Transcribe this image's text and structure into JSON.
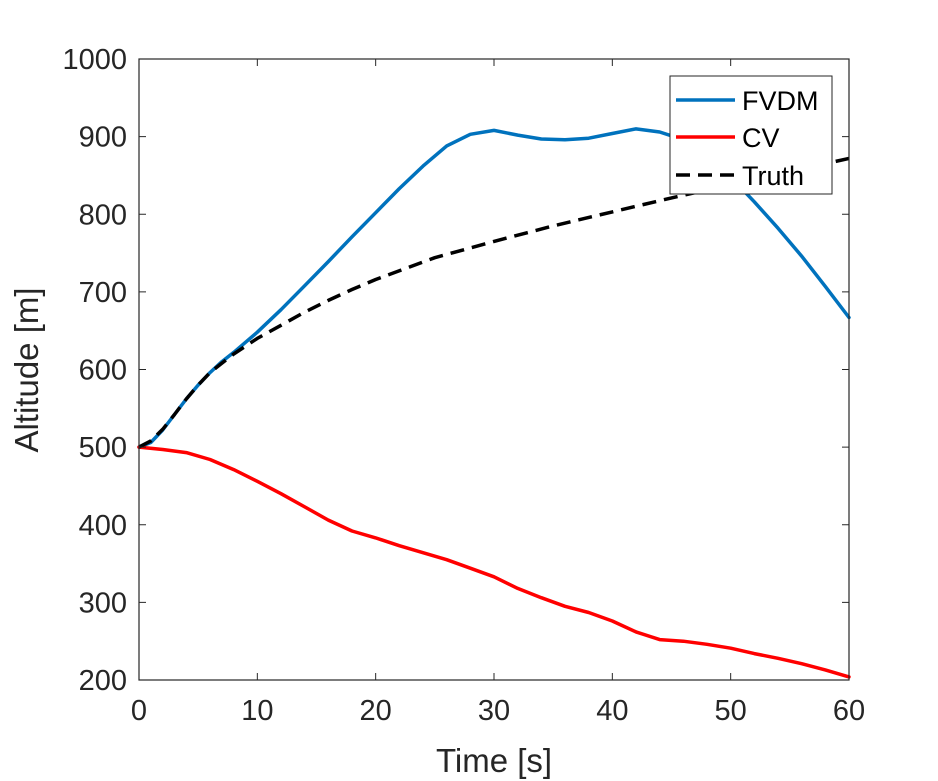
{
  "chart_data": {
    "type": "line",
    "xlabel": "Time [s]",
    "ylabel": "Altitude [m]",
    "xlim": [
      0,
      60
    ],
    "ylim": [
      200,
      1000
    ],
    "xticks": [
      "0",
      "10",
      "20",
      "30",
      "40",
      "50",
      "60"
    ],
    "yticks": [
      "200",
      "300",
      "400",
      "500",
      "600",
      "700",
      "800",
      "900",
      "1000"
    ],
    "grid": false,
    "legend_position": "top-right",
    "series": [
      {
        "name": "FVDM",
        "color": "#0072BD",
        "style": "solid",
        "x": [
          0,
          1,
          2,
          3,
          4,
          5,
          6,
          7,
          8,
          10,
          12,
          14,
          16,
          18,
          20,
          22,
          24,
          26,
          28,
          30,
          32,
          34,
          36,
          38,
          40,
          42,
          44,
          46,
          48,
          50,
          52,
          54,
          56,
          58,
          60
        ],
        "y": [
          500,
          506,
          522,
          542,
          562,
          580,
          596,
          610,
          622,
          648,
          677,
          708,
          739,
          771,
          802,
          833,
          862,
          888,
          903,
          908,
          902,
          897,
          896,
          898,
          904,
          910,
          906,
          896,
          878,
          848,
          816,
          782,
          746,
          707,
          667
        ]
      },
      {
        "name": "CV",
        "color": "#FF0000",
        "style": "solid",
        "x": [
          0,
          2,
          4,
          6,
          8,
          10,
          12,
          14,
          16,
          18,
          20,
          22,
          24,
          26,
          28,
          30,
          32,
          34,
          36,
          38,
          40,
          42,
          44,
          46,
          48,
          50,
          52,
          54,
          56,
          58,
          60
        ],
        "y": [
          500,
          497,
          493,
          484,
          471,
          456,
          440,
          423,
          406,
          392,
          383,
          373,
          364,
          355,
          344,
          333,
          318,
          306,
          295,
          287,
          276,
          262,
          252,
          250,
          246,
          241,
          234,
          228,
          221,
          213,
          204
        ]
      },
      {
        "name": "Truth",
        "color": "#000000",
        "style": "dashed",
        "x": [
          0,
          1,
          2,
          3,
          4,
          5,
          6,
          7,
          8,
          10,
          12,
          14,
          16,
          18,
          20,
          25,
          30,
          35,
          40,
          45,
          50,
          55,
          60
        ],
        "y": [
          500,
          508,
          523,
          542,
          562,
          580,
          596,
          608,
          620,
          640,
          657,
          674,
          689,
          703,
          716,
          744,
          765,
          785,
          803,
          821,
          838,
          855,
          872
        ]
      }
    ]
  }
}
